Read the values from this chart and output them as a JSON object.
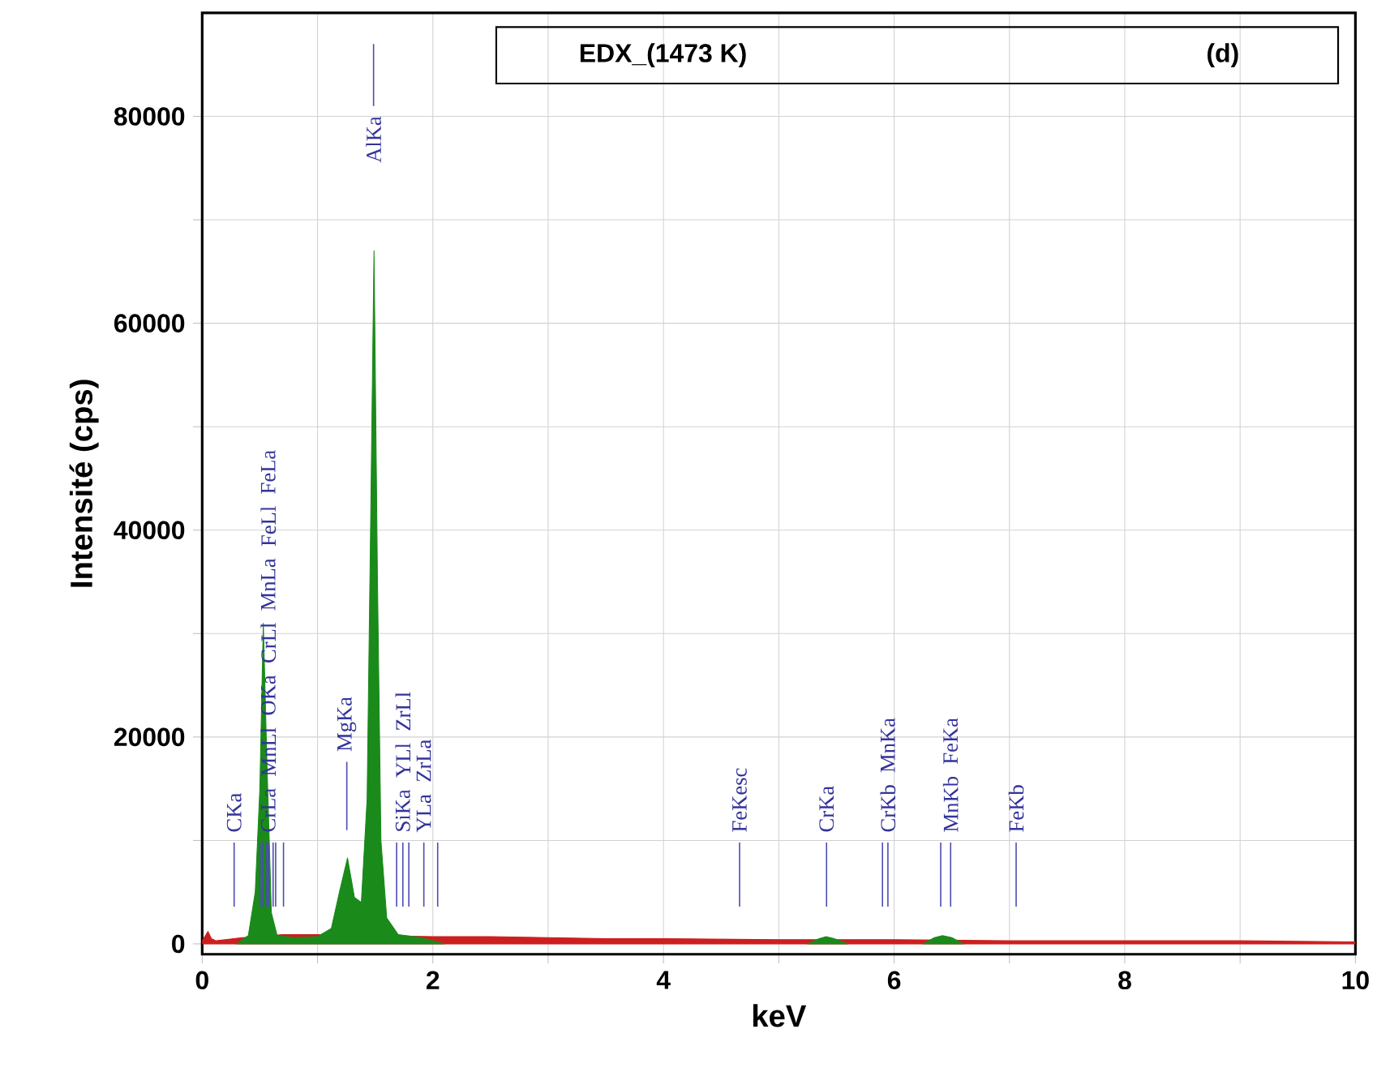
{
  "chart_data": {
    "type": "area",
    "title": "EDX_(1473 K)",
    "subtitle": "(d)",
    "xlabel": "keV",
    "ylabel": "Intensité (cps)",
    "xlim": [
      0,
      10
    ],
    "ylim": [
      -1000,
      90000
    ],
    "xticks": [
      0,
      {
        "value": 1,
        "label": null
      },
      2,
      {
        "value": 3,
        "label": null
      },
      4,
      {
        "value": 5,
        "label": null
      },
      6,
      {
        "value": 7,
        "label": null
      },
      8,
      {
        "value": 9,
        "label": null
      },
      10
    ],
    "yticks": [
      0,
      {
        "value": 10000,
        "label": null
      },
      20000,
      {
        "value": 30000,
        "label": null
      },
      40000,
      {
        "value": 50000,
        "label": null
      },
      60000,
      {
        "value": 70000,
        "label": null
      },
      80000
    ],
    "grid": true,
    "series": [
      {
        "color": "#cc1f1f",
        "x": [
          0,
          0.05,
          0.08,
          0.12,
          0.2,
          0.35,
          0.7,
          1.0,
          2.0,
          2.5,
          3.0,
          3.5,
          4.0,
          5.0,
          6.0,
          7.0,
          8.0,
          9.0,
          10.0
        ],
        "values": [
          300,
          1200,
          500,
          300,
          400,
          600,
          900,
          900,
          700,
          700,
          600,
          500,
          500,
          400,
          400,
          300,
          300,
          300,
          200
        ]
      },
      {
        "color": "#1a8a1a",
        "x": [
          0.3,
          0.4,
          0.46,
          0.5,
          0.53,
          0.56,
          0.6,
          0.65,
          0.8,
          1.0,
          1.12,
          1.19,
          1.26,
          1.32,
          1.38,
          1.43,
          1.46,
          1.49,
          1.52,
          1.55,
          1.6,
          1.7,
          1.9,
          2.1
        ],
        "values": [
          0,
          800,
          5000,
          15000,
          31000,
          18000,
          3000,
          800,
          600,
          700,
          1500,
          5000,
          8300,
          4500,
          4000,
          14000,
          40000,
          67000,
          35000,
          10000,
          2500,
          900,
          600,
          0
        ]
      },
      {
        "color": "#1a8a1a",
        "x": [
          5.25,
          5.35,
          5.41,
          5.48,
          5.6
        ],
        "values": [
          0,
          500,
          700,
          500,
          0
        ]
      },
      {
        "color": "#1a8a1a",
        "x": [
          6.25,
          6.35,
          6.42,
          6.5,
          6.6
        ],
        "values": [
          0,
          600,
          800,
          600,
          0
        ]
      },
      {
        "type": "line",
        "color": "#4c4cb2",
        "x": [
          0.277,
          0.277
        ],
        "values": [
          3600,
          9800
        ]
      },
      {
        "type": "line",
        "color": "#4c4cb2",
        "x": [
          0.573,
          0.573
        ],
        "values": [
          3600,
          9800
        ]
      },
      {
        "type": "line",
        "color": "#4c4cb2",
        "x": [
          0.556,
          0.556
        ],
        "values": [
          3600,
          9800
        ]
      },
      {
        "type": "line",
        "color": "#4c4cb2",
        "x": [
          0.525,
          0.525
        ],
        "values": [
          3600,
          9800
        ]
      },
      {
        "type": "line",
        "color": "#4c4cb2",
        "x": [
          0.5,
          0.5
        ],
        "values": [
          3600,
          9800
        ]
      },
      {
        "type": "line",
        "color": "#4c4cb2",
        "x": [
          0.637,
          0.637
        ],
        "values": [
          3600,
          9800
        ]
      },
      {
        "type": "line",
        "color": "#4c4cb2",
        "x": [
          0.615,
          0.615
        ],
        "values": [
          3600,
          9800
        ]
      },
      {
        "type": "line",
        "color": "#4c4cb2",
        "x": [
          0.705,
          0.705
        ],
        "values": [
          3600,
          9800
        ]
      },
      {
        "type": "line",
        "color": "#4c4cb2",
        "x": [
          1.254,
          1.254
        ],
        "values": [
          11000,
          17600
        ]
      },
      {
        "type": "line",
        "color": "#4c4cb2",
        "x": [
          1.486,
          1.486
        ],
        "values": [
          81000,
          87000
        ]
      },
      {
        "type": "line",
        "color": "#4c4cb2",
        "x": [
          1.74,
          1.74
        ],
        "values": [
          3600,
          9800
        ]
      },
      {
        "type": "line",
        "color": "#4c4cb2",
        "x": [
          1.686,
          1.686
        ],
        "values": [
          3600,
          9800
        ]
      },
      {
        "type": "line",
        "color": "#4c4cb2",
        "x": [
          1.922,
          1.922
        ],
        "values": [
          3600,
          9800
        ]
      },
      {
        "type": "line",
        "color": "#4c4cb2",
        "x": [
          1.792,
          1.792
        ],
        "values": [
          3600,
          9800
        ]
      },
      {
        "type": "line",
        "color": "#4c4cb2",
        "x": [
          2.042,
          2.042
        ],
        "values": [
          3600,
          9800
        ]
      },
      {
        "type": "line",
        "color": "#4c4cb2",
        "x": [
          4.66,
          4.66
        ],
        "values": [
          3600,
          9800
        ]
      },
      {
        "type": "line",
        "color": "#4c4cb2",
        "x": [
          5.414,
          5.414
        ],
        "values": [
          3600,
          9800
        ]
      },
      {
        "type": "line",
        "color": "#4c4cb2",
        "x": [
          5.946,
          5.946
        ],
        "values": [
          3600,
          9800
        ]
      },
      {
        "type": "line",
        "color": "#4c4cb2",
        "x": [
          5.899,
          5.899
        ],
        "values": [
          3600,
          9800
        ]
      },
      {
        "type": "line",
        "color": "#4c4cb2",
        "x": [
          6.49,
          6.49
        ],
        "values": [
          3600,
          9800
        ]
      },
      {
        "type": "line",
        "color": "#4c4cb2",
        "x": [
          6.404,
          6.404
        ],
        "values": [
          3600,
          9800
        ]
      },
      {
        "type": "line",
        "color": "#4c4cb2",
        "x": [
          7.058,
          7.058
        ],
        "values": [
          3600,
          9800
        ]
      }
    ],
    "annotations": [
      {
        "text": "CKa",
        "x": 0.277,
        "y": 9800
      },
      {
        "text": "CrLa",
        "x": 0.573,
        "y": 9800
      },
      "MnLl",
      "OKa",
      "CrLl",
      "MnLa",
      "FeLl",
      "FeLa",
      {
        "text": "MgKa",
        "x": 1.254,
        "y": 17600
      },
      {
        "text": "AlKa",
        "x": 1.486,
        "y": 81000
      },
      {
        "text": "SiKa",
        "x": 1.74,
        "y": 9800
      },
      "YLl",
      "ZrLl",
      {
        "text": "YLa",
        "x": 1.922,
        "y": 9800
      },
      "ZrLa",
      {
        "text": "FeKesc",
        "x": 4.66,
        "y": 9800
      },
      {
        "text": "CrKa",
        "x": 5.414,
        "y": 9800
      },
      {
        "text": "CrKb",
        "x": 5.946,
        "y": 9800
      },
      "MnKa",
      {
        "text": "MnKb",
        "x": 6.49,
        "y": 9800
      },
      "FeKa",
      {
        "text": "FeKb",
        "x": 7.058,
        "y": 9800
      }
    ]
  }
}
